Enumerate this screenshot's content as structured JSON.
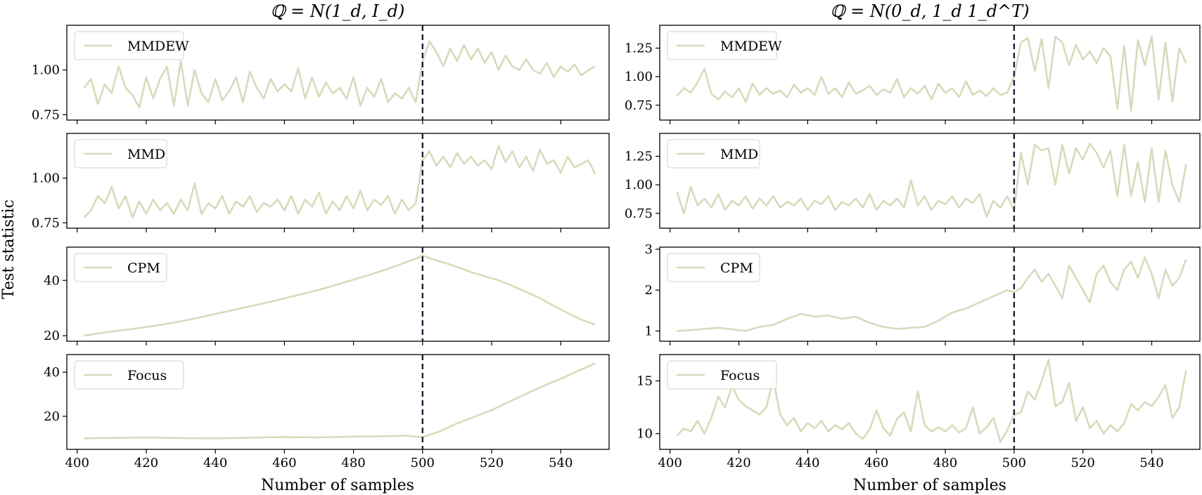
{
  "figure": {
    "ylabel": "Test statistic",
    "xlabel": "Number of samples",
    "titles": [
      "ℚ = N(1_d, I_d)",
      "ℚ = N(0_d, 1_d 1_d^T)"
    ],
    "line_color": "#d4dcbb",
    "changepoint_color": "#1f1d3a",
    "x_ticks": [
      400,
      420,
      440,
      460,
      480,
      500,
      520,
      540
    ],
    "x_range": [
      397,
      554
    ]
  },
  "chart_data": [
    {
      "type": "line",
      "column": 0,
      "row": 0,
      "legend": "MMDEW",
      "xlim": [
        397,
        554
      ],
      "ylim": [
        0.72,
        1.25
      ],
      "yticks": [
        0.75,
        1.0
      ],
      "ytick_labels": [
        "0.75",
        "1.00"
      ],
      "changepoint": 500,
      "x": [
        402,
        404,
        406,
        408,
        410,
        412,
        414,
        416,
        418,
        420,
        422,
        424,
        426,
        428,
        430,
        432,
        434,
        436,
        438,
        440,
        442,
        444,
        446,
        448,
        450,
        452,
        454,
        456,
        458,
        460,
        462,
        464,
        466,
        468,
        470,
        472,
        474,
        476,
        478,
        480,
        482,
        484,
        486,
        488,
        490,
        492,
        494,
        496,
        498,
        500,
        502,
        504,
        506,
        508,
        510,
        512,
        514,
        516,
        518,
        520,
        522,
        524,
        526,
        528,
        530,
        532,
        534,
        536,
        538,
        540,
        542,
        544,
        546,
        548,
        550
      ],
      "y": [
        0.9,
        0.95,
        0.81,
        0.92,
        0.87,
        1.02,
        0.9,
        0.86,
        0.79,
        0.96,
        0.84,
        0.95,
        1.02,
        0.8,
        1.05,
        0.8,
        1.0,
        0.87,
        0.82,
        0.95,
        0.83,
        0.88,
        0.96,
        0.82,
        0.99,
        0.9,
        0.84,
        0.95,
        0.88,
        0.92,
        0.88,
        1.01,
        0.84,
        0.96,
        0.85,
        0.93,
        0.87,
        0.9,
        0.84,
        0.96,
        0.8,
        0.9,
        0.85,
        0.95,
        0.82,
        0.87,
        0.84,
        0.9,
        0.82,
        1.05,
        1.16,
        1.1,
        1.02,
        1.12,
        1.05,
        1.14,
        1.06,
        1.12,
        1.04,
        1.1,
        1.0,
        1.08,
        1.02,
        1.0,
        1.06,
        1.0,
        0.98,
        1.04,
        0.96,
        1.02,
        0.99,
        1.03,
        0.97,
        1.0,
        1.02
      ]
    },
    {
      "type": "line",
      "column": 0,
      "row": 1,
      "legend": "MMD",
      "xlim": [
        397,
        554
      ],
      "ylim": [
        0.72,
        1.25
      ],
      "yticks": [
        0.75,
        1.0
      ],
      "ytick_labels": [
        "0.75",
        "1.00"
      ],
      "changepoint": 500,
      "x": [
        402,
        404,
        406,
        408,
        410,
        412,
        414,
        416,
        418,
        420,
        422,
        424,
        426,
        428,
        430,
        432,
        434,
        436,
        438,
        440,
        442,
        444,
        446,
        448,
        450,
        452,
        454,
        456,
        458,
        460,
        462,
        464,
        466,
        468,
        470,
        472,
        474,
        476,
        478,
        480,
        482,
        484,
        486,
        488,
        490,
        492,
        494,
        496,
        498,
        500,
        502,
        504,
        506,
        508,
        510,
        512,
        514,
        516,
        518,
        520,
        522,
        524,
        526,
        528,
        530,
        532,
        534,
        536,
        538,
        540,
        542,
        544,
        546,
        548,
        550
      ],
      "y": [
        0.78,
        0.82,
        0.9,
        0.86,
        0.95,
        0.83,
        0.9,
        0.78,
        0.87,
        0.8,
        0.88,
        0.82,
        0.86,
        0.8,
        0.88,
        0.82,
        0.97,
        0.8,
        0.86,
        0.83,
        0.9,
        0.8,
        0.87,
        0.84,
        0.9,
        0.81,
        0.86,
        0.84,
        0.88,
        0.82,
        0.9,
        0.8,
        0.88,
        0.84,
        0.92,
        0.8,
        0.87,
        0.82,
        0.9,
        0.83,
        0.93,
        0.82,
        0.88,
        0.85,
        0.9,
        0.8,
        0.88,
        0.82,
        0.86,
        1.1,
        1.15,
        1.07,
        1.12,
        1.06,
        1.14,
        1.08,
        1.12,
        1.07,
        1.1,
        1.05,
        1.18,
        1.09,
        1.15,
        1.06,
        1.12,
        1.04,
        1.16,
        1.08,
        1.1,
        1.03,
        1.12,
        1.06,
        1.08,
        1.1,
        1.02
      ]
    },
    {
      "type": "line",
      "column": 0,
      "row": 2,
      "legend": "CPM",
      "xlim": [
        397,
        554
      ],
      "ylim": [
        18,
        52
      ],
      "yticks": [
        20,
        40
      ],
      "ytick_labels": [
        "20",
        "40"
      ],
      "changepoint": 500,
      "x": [
        402,
        406,
        410,
        414,
        418,
        422,
        426,
        430,
        434,
        438,
        442,
        446,
        450,
        454,
        458,
        462,
        466,
        470,
        474,
        478,
        482,
        486,
        490,
        494,
        498,
        500,
        502,
        506,
        510,
        514,
        518,
        522,
        526,
        530,
        534,
        538,
        542,
        546,
        550
      ],
      "y": [
        20,
        20.8,
        21.5,
        22.1,
        22.8,
        23.5,
        24.3,
        25.2,
        26.2,
        27.3,
        28.4,
        29.5,
        30.6,
        31.7,
        32.9,
        34.1,
        35.3,
        36.6,
        38,
        39.5,
        41,
        42.5,
        44.2,
        46,
        47.8,
        49,
        48,
        46.5,
        44.8,
        43,
        41.5,
        40,
        38,
        35.8,
        33.5,
        30.8,
        28.2,
        25.8,
        24
      ]
    },
    {
      "type": "line",
      "column": 0,
      "row": 3,
      "legend": "Focus",
      "xlim": [
        397,
        554
      ],
      "ylim": [
        5,
        48
      ],
      "yticks": [
        20,
        40
      ],
      "ytick_labels": [
        "20",
        "40"
      ],
      "changepoint": 500,
      "x": [
        402,
        410,
        420,
        430,
        440,
        450,
        460,
        470,
        480,
        490,
        495,
        500,
        505,
        510,
        515,
        520,
        525,
        530,
        535,
        540,
        545,
        550
      ],
      "y": [
        10,
        10.2,
        10.4,
        10.1,
        10,
        10.3,
        10.6,
        10.4,
        10.8,
        11,
        11.2,
        10.5,
        13.2,
        16.8,
        19.8,
        22.8,
        26.5,
        30.2,
        33.8,
        37,
        40.6,
        44
      ]
    },
    {
      "type": "line",
      "column": 1,
      "row": 0,
      "legend": "MMDEW",
      "xlim": [
        397,
        554
      ],
      "ylim": [
        0.62,
        1.45
      ],
      "yticks": [
        0.75,
        1.0,
        1.25
      ],
      "ytick_labels": [
        "0.75",
        "1.00",
        "1.25"
      ],
      "changepoint": 500,
      "x": [
        402,
        404,
        406,
        408,
        410,
        412,
        414,
        416,
        418,
        420,
        422,
        424,
        426,
        428,
        430,
        432,
        434,
        436,
        438,
        440,
        442,
        444,
        446,
        448,
        450,
        452,
        454,
        456,
        458,
        460,
        462,
        464,
        466,
        468,
        470,
        472,
        474,
        476,
        478,
        480,
        482,
        484,
        486,
        488,
        490,
        492,
        494,
        496,
        498,
        500,
        502,
        504,
        506,
        508,
        510,
        512,
        514,
        516,
        518,
        520,
        522,
        524,
        526,
        528,
        530,
        532,
        534,
        536,
        538,
        540,
        542,
        544,
        546,
        548,
        550
      ],
      "y": [
        0.83,
        0.9,
        0.86,
        0.95,
        1.07,
        0.85,
        0.8,
        0.87,
        0.82,
        0.9,
        0.78,
        0.94,
        0.84,
        0.9,
        0.85,
        0.88,
        0.82,
        0.93,
        0.86,
        0.9,
        0.84,
        1.0,
        0.85,
        0.9,
        0.82,
        0.95,
        0.85,
        0.88,
        0.92,
        0.84,
        0.89,
        0.86,
        0.98,
        0.82,
        0.9,
        0.85,
        0.92,
        0.8,
        0.94,
        0.86,
        0.9,
        0.82,
        0.96,
        0.84,
        0.88,
        0.83,
        0.9,
        0.84,
        0.86,
        1.0,
        1.3,
        1.34,
        1.05,
        1.33,
        0.9,
        1.35,
        1.3,
        1.1,
        1.28,
        1.15,
        1.22,
        1.12,
        1.25,
        1.18,
        0.72,
        1.27,
        0.7,
        1.32,
        1.1,
        1.35,
        0.8,
        1.3,
        0.78,
        1.25,
        1.12
      ]
    },
    {
      "type": "line",
      "column": 1,
      "row": 1,
      "legend": "MMD",
      "xlim": [
        397,
        554
      ],
      "ylim": [
        0.62,
        1.45
      ],
      "yticks": [
        0.75,
        1.0,
        1.25
      ],
      "ytick_labels": [
        "0.75",
        "1.00",
        "1.25"
      ],
      "changepoint": 500,
      "x": [
        402,
        404,
        406,
        408,
        410,
        412,
        414,
        416,
        418,
        420,
        422,
        424,
        426,
        428,
        430,
        432,
        434,
        436,
        438,
        440,
        442,
        444,
        446,
        448,
        450,
        452,
        454,
        456,
        458,
        460,
        462,
        464,
        466,
        468,
        470,
        472,
        474,
        476,
        478,
        480,
        482,
        484,
        486,
        488,
        490,
        492,
        494,
        496,
        498,
        500,
        502,
        504,
        506,
        508,
        510,
        512,
        514,
        516,
        518,
        520,
        522,
        524,
        526,
        528,
        530,
        532,
        534,
        536,
        538,
        540,
        542,
        544,
        546,
        548,
        550
      ],
      "y": [
        0.94,
        0.75,
        0.98,
        0.82,
        0.88,
        0.8,
        0.92,
        0.78,
        0.86,
        0.82,
        0.9,
        0.79,
        0.88,
        0.82,
        0.9,
        0.8,
        0.85,
        0.82,
        0.88,
        0.78,
        0.86,
        0.83,
        0.9,
        0.78,
        0.85,
        0.82,
        0.88,
        0.8,
        0.92,
        0.78,
        0.86,
        0.82,
        0.88,
        0.8,
        1.04,
        0.82,
        0.9,
        0.78,
        0.86,
        0.83,
        0.9,
        0.8,
        0.88,
        0.84,
        0.92,
        0.72,
        0.86,
        0.8,
        0.9,
        0.78,
        1.28,
        1.0,
        1.35,
        1.3,
        1.32,
        1.0,
        1.35,
        1.1,
        1.32,
        1.22,
        1.36,
        1.28,
        1.15,
        1.3,
        0.9,
        1.35,
        0.9,
        1.2,
        0.85,
        1.32,
        0.85,
        1.3,
        1.0,
        0.85,
        1.18
      ]
    },
    {
      "type": "line",
      "column": 1,
      "row": 2,
      "legend": "CPM",
      "xlim": [
        397,
        554
      ],
      "ylim": [
        0.75,
        3.05
      ],
      "yticks": [
        1,
        2,
        3
      ],
      "ytick_labels": [
        "1",
        "2",
        "3"
      ],
      "changepoint": 500,
      "x": [
        402,
        406,
        410,
        414,
        418,
        422,
        426,
        430,
        434,
        438,
        442,
        446,
        450,
        454,
        458,
        462,
        466,
        470,
        474,
        478,
        482,
        486,
        490,
        494,
        498,
        500,
        502,
        504,
        506,
        508,
        510,
        512,
        514,
        516,
        518,
        520,
        522,
        524,
        526,
        528,
        530,
        532,
        534,
        536,
        538,
        540,
        542,
        544,
        546,
        548,
        550
      ],
      "y": [
        1,
        1.02,
        1.05,
        1.08,
        1.04,
        1.0,
        1.1,
        1.15,
        1.3,
        1.42,
        1.35,
        1.38,
        1.3,
        1.35,
        1.2,
        1.1,
        1.05,
        1.08,
        1.1,
        1.25,
        1.45,
        1.55,
        1.7,
        1.85,
        2.0,
        1.95,
        2.05,
        2.3,
        2.5,
        2.2,
        2.4,
        2.1,
        1.8,
        2.6,
        2.3,
        2.0,
        1.7,
        2.4,
        2.6,
        2.2,
        2.0,
        2.5,
        2.7,
        2.3,
        2.8,
        2.4,
        1.8,
        2.5,
        2.1,
        2.3,
        2.75
      ]
    },
    {
      "type": "line",
      "column": 1,
      "row": 3,
      "legend": "Focus",
      "xlim": [
        397,
        554
      ],
      "ylim": [
        8.5,
        17.5
      ],
      "yticks": [
        10,
        15
      ],
      "ytick_labels": [
        "10",
        "15"
      ],
      "changepoint": 500,
      "x": [
        402,
        404,
        406,
        408,
        410,
        412,
        414,
        416,
        418,
        420,
        422,
        424,
        426,
        428,
        430,
        432,
        434,
        436,
        438,
        440,
        442,
        444,
        446,
        448,
        450,
        452,
        454,
        456,
        458,
        460,
        462,
        464,
        466,
        468,
        470,
        472,
        474,
        476,
        478,
        480,
        482,
        484,
        486,
        488,
        490,
        492,
        494,
        496,
        498,
        500,
        502,
        504,
        506,
        508,
        510,
        512,
        514,
        516,
        518,
        520,
        522,
        524,
        526,
        528,
        530,
        532,
        534,
        536,
        538,
        540,
        542,
        544,
        546,
        548,
        550
      ],
      "y": [
        9.8,
        10.5,
        10.2,
        11.2,
        10,
        11.5,
        13.5,
        12.5,
        14.5,
        13.2,
        12.6,
        12.2,
        11.8,
        12.5,
        15.2,
        11.8,
        10.8,
        11.5,
        10.2,
        11,
        10.5,
        11.2,
        10.2,
        10.8,
        10.4,
        11,
        10,
        9.5,
        10.4,
        12.2,
        10.5,
        9.8,
        11.4,
        12,
        10.2,
        14,
        10.8,
        10.2,
        10.6,
        10.2,
        10.8,
        10.1,
        10.5,
        12.5,
        10,
        10.6,
        11.5,
        9.2,
        10.3,
        11.8,
        12,
        14,
        13.2,
        15,
        17,
        12.6,
        13,
        14.8,
        11.2,
        12.5,
        10.5,
        11.2,
        10,
        10.8,
        10.2,
        11,
        12.8,
        12.2,
        13,
        12.6,
        13.5,
        14.6,
        11.5,
        12.5,
        16
      ]
    }
  ]
}
